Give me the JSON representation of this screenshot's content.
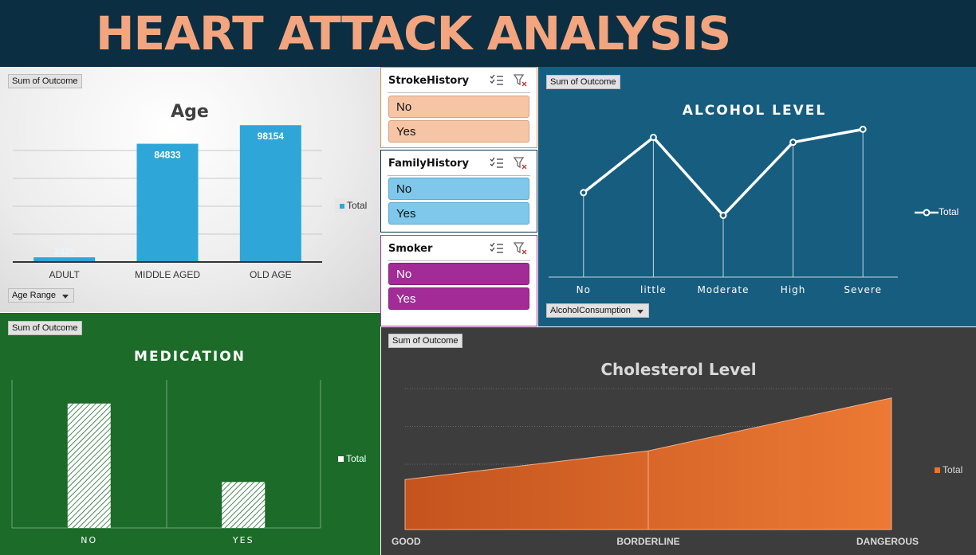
{
  "title": "HEART ATTACK ANALYSIS",
  "age": {
    "field": "Sum of Outcome",
    "axis_field": "Age Range",
    "legend": "Total",
    "chart_data": {
      "type": "bar",
      "title": "Age",
      "categories": [
        "ADULT",
        "MIDDLE AGED",
        "OLD AGE"
      ],
      "values": [
        3329,
        84833,
        98154
      ],
      "ylim": [
        0,
        120000
      ],
      "grid": true,
      "legend": "right",
      "colors": {
        "bar": "#2ea6d8",
        "label": "#ffffff"
      }
    }
  },
  "slicers": {
    "stroke": {
      "title": "StrokeHistory",
      "items": [
        "No",
        "Yes"
      ]
    },
    "family": {
      "title": "FamilyHistory",
      "items": [
        "No",
        "Yes"
      ]
    },
    "smoker": {
      "title": "Smoker",
      "items": [
        "No",
        "Yes"
      ]
    }
  },
  "alcohol": {
    "field": "Sum of Outcome",
    "axis_field": "AlcoholConsumption",
    "legend": "Total",
    "chart_data": {
      "type": "line",
      "title": "ALCOHOL LEVEL",
      "categories": [
        "No",
        "little",
        "Moderate",
        "High",
        "Severe"
      ],
      "values": [
        0.52,
        0.86,
        0.38,
        0.83,
        0.91
      ],
      "ylim": [
        0,
        1
      ],
      "grid": false,
      "legend": "right",
      "colors": {
        "line": "#ffffff"
      }
    }
  },
  "medication": {
    "field": "Sum of Outcome",
    "legend": "Total",
    "chart_data": {
      "type": "bar",
      "title": "MEDICATION",
      "categories": [
        "NO",
        "YES"
      ],
      "values": [
        0.84,
        0.31
      ],
      "ylim": [
        0,
        1
      ],
      "grid": false,
      "legend": "right",
      "colors": {
        "bar": "#ffffff",
        "hatch": "#1c6b29"
      }
    }
  },
  "cholesterol": {
    "field": "Sum of Outcome",
    "legend": "Total",
    "chart_data": {
      "type": "area",
      "title": "Cholesterol Level",
      "categories": [
        "GOOD",
        "BORDERLINE",
        "DANGEROUS"
      ],
      "values": [
        0.33,
        0.52,
        0.87
      ],
      "ylim": [
        0,
        1
      ],
      "grid": true,
      "legend": "right",
      "colors": {
        "area": "#e8742e"
      }
    }
  }
}
